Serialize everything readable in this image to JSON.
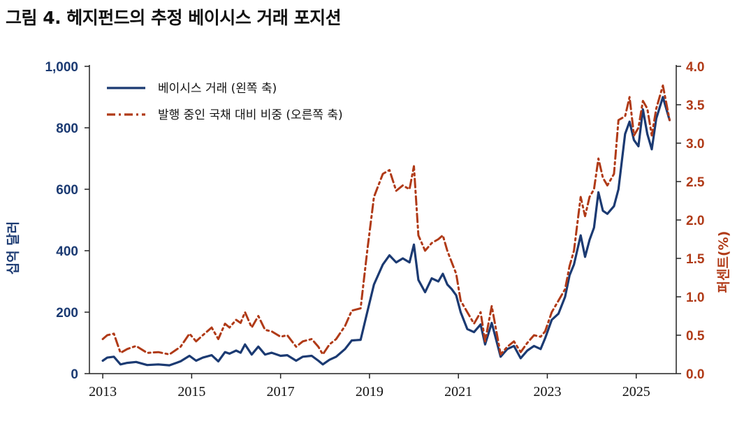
{
  "title": "그림 4. 헤지펀드의 추정 베이시스 거래 포지션",
  "chart_data": {
    "type": "line",
    "ylabel_left": "십억 달러",
    "ylabel_right": "퍼센트(%)",
    "ylim_left": [
      0,
      1000
    ],
    "ylim_right": [
      0,
      4
    ],
    "xlim": [
      2012.7,
      2025.9
    ],
    "yticks_left": [
      "0",
      "200",
      "400",
      "600",
      "800",
      "1,000"
    ],
    "yticks_right": [
      "0.0",
      "0.5",
      "1.0",
      "1.5",
      "2.0",
      "2.5",
      "3.0",
      "3.5",
      "4.0"
    ],
    "xticks": [
      "2013",
      "2015",
      "2017",
      "2019",
      "2021",
      "2023",
      "2025"
    ],
    "legend_position": "top-left",
    "colors": {
      "basis": "#1b3a72",
      "share": "#b03a17"
    },
    "series": [
      {
        "name": "베이시스 거래 (왼쪽 축)",
        "axis": "left",
        "style": "solid",
        "x": [
          2013.0,
          2013.1,
          2013.25,
          2013.4,
          2013.55,
          2013.75,
          2014.0,
          2014.25,
          2014.5,
          2014.75,
          2014.95,
          2015.1,
          2015.25,
          2015.45,
          2015.6,
          2015.75,
          2015.85,
          2016.0,
          2016.1,
          2016.2,
          2016.35,
          2016.5,
          2016.65,
          2016.8,
          2017.0,
          2017.15,
          2017.35,
          2017.5,
          2017.7,
          2017.85,
          2017.95,
          2018.1,
          2018.25,
          2018.45,
          2018.6,
          2018.8,
          2018.95,
          2019.1,
          2019.3,
          2019.45,
          2019.6,
          2019.75,
          2019.9,
          2020.0,
          2020.1,
          2020.25,
          2020.4,
          2020.55,
          2020.65,
          2020.75,
          2020.85,
          2020.95,
          2021.05,
          2021.2,
          2021.35,
          2021.5,
          2021.6,
          2021.75,
          2021.95,
          2022.1,
          2022.25,
          2022.4,
          2022.55,
          2022.7,
          2022.85,
          2022.95,
          2023.1,
          2023.25,
          2023.4,
          2023.5,
          2023.6,
          2023.75,
          2023.85,
          2023.95,
          2024.05,
          2024.15,
          2024.25,
          2024.35,
          2024.5,
          2024.6,
          2024.75,
          2024.85,
          2024.95,
          2025.05,
          2025.15,
          2025.25,
          2025.35,
          2025.45,
          2025.6,
          2025.75
        ],
        "values": [
          42,
          52,
          55,
          30,
          35,
          38,
          28,
          30,
          27,
          40,
          58,
          42,
          52,
          60,
          40,
          70,
          65,
          75,
          68,
          95,
          62,
          88,
          62,
          68,
          58,
          60,
          42,
          55,
          58,
          42,
          30,
          45,
          55,
          80,
          108,
          110,
          200,
          290,
          355,
          385,
          362,
          375,
          362,
          420,
          305,
          265,
          310,
          300,
          325,
          290,
          275,
          255,
          200,
          145,
          135,
          160,
          95,
          165,
          55,
          80,
          90,
          50,
          75,
          90,
          80,
          115,
          175,
          195,
          250,
          320,
          355,
          450,
          380,
          435,
          475,
          590,
          530,
          520,
          545,
          600,
          780,
          820,
          760,
          740,
          860,
          780,
          730,
          830,
          900,
          825
        ]
      },
      {
        "name": "발행 중인 국채 대비 비중 (오른쪽 축)",
        "axis": "right",
        "style": "dash-dot",
        "x": [
          2013.0,
          2013.1,
          2013.25,
          2013.4,
          2013.55,
          2013.75,
          2014.0,
          2014.25,
          2014.5,
          2014.75,
          2014.95,
          2015.1,
          2015.25,
          2015.45,
          2015.6,
          2015.75,
          2015.85,
          2016.0,
          2016.1,
          2016.2,
          2016.35,
          2016.5,
          2016.65,
          2016.8,
          2017.0,
          2017.15,
          2017.35,
          2017.5,
          2017.7,
          2017.85,
          2017.95,
          2018.1,
          2018.25,
          2018.45,
          2018.6,
          2018.8,
          2018.95,
          2019.1,
          2019.3,
          2019.45,
          2019.6,
          2019.75,
          2019.9,
          2020.0,
          2020.1,
          2020.25,
          2020.4,
          2020.55,
          2020.65,
          2020.75,
          2020.85,
          2020.95,
          2021.05,
          2021.2,
          2021.35,
          2021.5,
          2021.6,
          2021.75,
          2021.95,
          2022.1,
          2022.25,
          2022.4,
          2022.55,
          2022.7,
          2022.85,
          2022.95,
          2023.1,
          2023.25,
          2023.4,
          2023.5,
          2023.6,
          2023.75,
          2023.85,
          2023.95,
          2024.05,
          2024.15,
          2024.25,
          2024.35,
          2024.5,
          2024.6,
          2024.75,
          2024.85,
          2024.95,
          2025.05,
          2025.15,
          2025.25,
          2025.35,
          2025.45,
          2025.6,
          2025.75
        ],
        "values": [
          0.45,
          0.5,
          0.52,
          0.27,
          0.32,
          0.36,
          0.27,
          0.28,
          0.25,
          0.35,
          0.52,
          0.42,
          0.5,
          0.6,
          0.45,
          0.65,
          0.6,
          0.7,
          0.66,
          0.8,
          0.6,
          0.75,
          0.57,
          0.55,
          0.48,
          0.5,
          0.35,
          0.42,
          0.45,
          0.35,
          0.25,
          0.38,
          0.45,
          0.62,
          0.82,
          0.85,
          1.6,
          2.3,
          2.6,
          2.65,
          2.38,
          2.45,
          2.4,
          2.7,
          1.8,
          1.6,
          1.7,
          1.75,
          1.8,
          1.6,
          1.45,
          1.3,
          0.95,
          0.8,
          0.65,
          0.8,
          0.42,
          0.88,
          0.25,
          0.35,
          0.42,
          0.28,
          0.4,
          0.5,
          0.48,
          0.55,
          0.8,
          0.95,
          1.1,
          1.4,
          1.6,
          2.3,
          2.05,
          2.3,
          2.4,
          2.8,
          2.55,
          2.45,
          2.6,
          3.3,
          3.35,
          3.6,
          3.1,
          3.2,
          3.55,
          3.45,
          3.1,
          3.45,
          3.75,
          3.3
        ]
      }
    ]
  }
}
